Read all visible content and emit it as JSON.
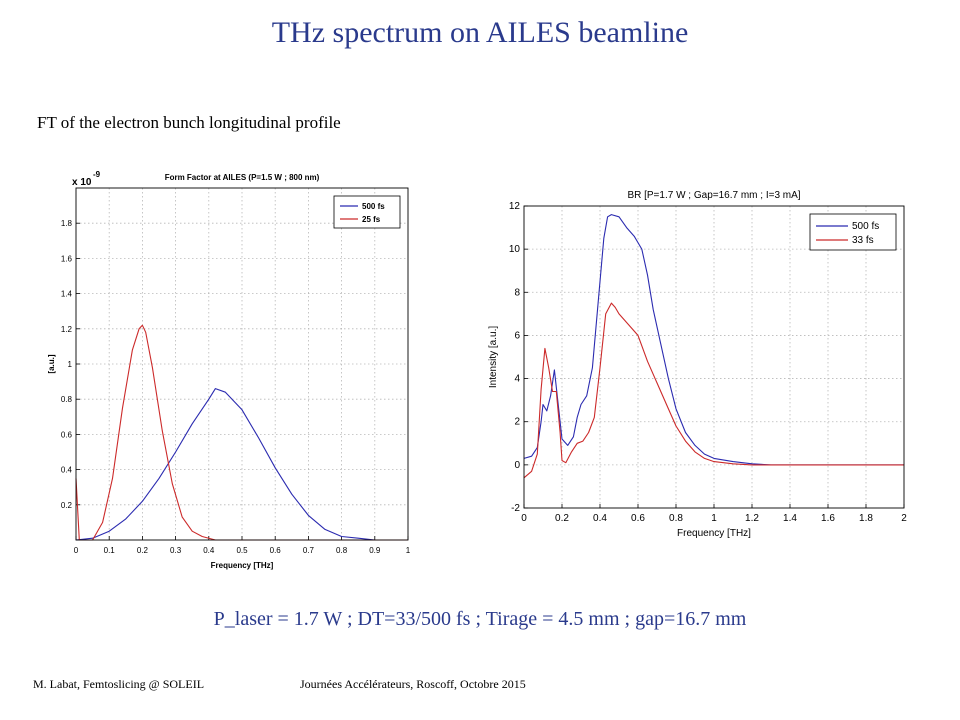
{
  "slide": {
    "title": "THz spectrum on AILES beamline",
    "subtitle": "FT of the electron bunch longitudinal profile",
    "params": "P_laser = 1.7 W ; DT=33/500 fs ; Tirage = 4.5 mm ; gap=16.7 mm",
    "footer_left": "M. Labat, Femtoslicing @ SOLEIL",
    "footer_right": "Journées Accélérateurs, Roscoff, Octobre 2015"
  },
  "chart_data": [
    {
      "type": "line",
      "title": "Form Factor at AILES (P=1.5 W ; 800 nm)",
      "xlabel": "Frequency [THz]",
      "ylabel": "[a.u.]",
      "y_multiplier": "x 10",
      "y_exponent": "-9",
      "xlim": [
        0,
        1
      ],
      "ylim": [
        0,
        2
      ],
      "xticks": [
        0,
        0.1,
        0.2,
        0.3,
        0.4,
        0.5,
        0.6,
        0.7,
        0.8,
        0.9,
        1
      ],
      "xtick_labels": [
        "0",
        "0.1",
        "0.2",
        "0.3",
        "0.4",
        "0.5",
        "0.6",
        "0.7",
        "0.8",
        "0.9",
        "1"
      ],
      "yticks": [
        0.2,
        0.4,
        0.6,
        0.8,
        1,
        1.2,
        1.4,
        1.6,
        1.8
      ],
      "ytick_labels": [
        "0.2",
        "0.4",
        "0.6",
        "0.8",
        "1",
        "1.2",
        "1.4",
        "1.6",
        "1.8"
      ],
      "grid": true,
      "legend_position": "top-right",
      "series": [
        {
          "name": "500 fs",
          "color": "#2b2bb0",
          "x": [
            0,
            0.05,
            0.1,
            0.15,
            0.2,
            0.25,
            0.3,
            0.35,
            0.4,
            0.42,
            0.45,
            0.5,
            0.55,
            0.6,
            0.65,
            0.7,
            0.75,
            0.8,
            0.85,
            0.9,
            1.0
          ],
          "y": [
            0.0,
            0.01,
            0.05,
            0.12,
            0.22,
            0.35,
            0.5,
            0.66,
            0.8,
            0.86,
            0.84,
            0.74,
            0.58,
            0.41,
            0.26,
            0.14,
            0.06,
            0.02,
            0.01,
            0.0,
            0.0
          ]
        },
        {
          "name": "25 fs",
          "color": "#cc2a2a",
          "x": [
            0.0,
            0.01,
            0.02,
            0.05,
            0.08,
            0.11,
            0.14,
            0.17,
            0.19,
            0.2,
            0.21,
            0.23,
            0.26,
            0.29,
            0.32,
            0.35,
            0.38,
            0.42,
            0.5,
            0.6,
            1.0
          ],
          "y": [
            0.35,
            0.0,
            0.0,
            0.0,
            0.1,
            0.35,
            0.75,
            1.08,
            1.2,
            1.22,
            1.18,
            0.98,
            0.62,
            0.32,
            0.13,
            0.05,
            0.02,
            0.0,
            0.0,
            0.0,
            0.0
          ]
        }
      ]
    },
    {
      "type": "line",
      "title": "BR [P=1.7 W ; Gap=16.7 mm ; I=3 mA]",
      "xlabel": "Frequency [THz]",
      "ylabel": "Intensity [a.u.]",
      "xlim": [
        0,
        2
      ],
      "ylim": [
        -2,
        12
      ],
      "xticks": [
        0,
        0.2,
        0.4,
        0.6,
        0.8,
        1,
        1.2,
        1.4,
        1.6,
        1.8,
        2
      ],
      "xtick_labels": [
        "0",
        "0.2",
        "0.4",
        "0.6",
        "0.8",
        "1",
        "1.2",
        "1.4",
        "1.6",
        "1.8",
        "2"
      ],
      "yticks": [
        -2,
        0,
        2,
        4,
        6,
        8,
        10,
        12
      ],
      "ytick_labels": [
        "-2",
        "0",
        "2",
        "4",
        "6",
        "8",
        "10",
        "12"
      ],
      "grid": true,
      "legend_position": "top-right",
      "series": [
        {
          "name": "500 fs",
          "color": "#2b2bb0",
          "x": [
            0,
            0.04,
            0.07,
            0.09,
            0.1,
            0.12,
            0.14,
            0.16,
            0.18,
            0.2,
            0.23,
            0.26,
            0.28,
            0.3,
            0.33,
            0.36,
            0.39,
            0.42,
            0.44,
            0.46,
            0.5,
            0.54,
            0.58,
            0.62,
            0.65,
            0.68,
            0.72,
            0.76,
            0.8,
            0.85,
            0.9,
            0.95,
            1.0,
            1.1,
            1.2,
            1.3,
            2.0
          ],
          "y": [
            0.3,
            0.4,
            0.8,
            2.0,
            2.8,
            2.5,
            3.2,
            4.4,
            2.8,
            1.2,
            0.9,
            1.3,
            2.2,
            2.8,
            3.2,
            4.5,
            7.5,
            10.5,
            11.5,
            11.6,
            11.5,
            11.0,
            10.6,
            10.0,
            8.8,
            7.2,
            5.6,
            4.0,
            2.6,
            1.5,
            0.9,
            0.5,
            0.3,
            0.15,
            0.05,
            0.0,
            0.0
          ]
        },
        {
          "name": "33 fs",
          "color": "#cc2a2a",
          "x": [
            0,
            0.04,
            0.07,
            0.09,
            0.11,
            0.13,
            0.15,
            0.17,
            0.19,
            0.2,
            0.22,
            0.25,
            0.28,
            0.31,
            0.34,
            0.37,
            0.4,
            0.43,
            0.46,
            0.48,
            0.5,
            0.55,
            0.6,
            0.65,
            0.7,
            0.75,
            0.8,
            0.85,
            0.9,
            0.95,
            1.0,
            1.1,
            1.2,
            1.3,
            2.0
          ],
          "y": [
            -0.6,
            -0.3,
            0.5,
            3.5,
            5.4,
            4.5,
            3.4,
            3.4,
            1.5,
            0.2,
            0.1,
            0.6,
            1.0,
            1.1,
            1.5,
            2.2,
            4.5,
            7.0,
            7.5,
            7.3,
            7.0,
            6.5,
            6.0,
            4.8,
            3.8,
            2.8,
            1.8,
            1.1,
            0.6,
            0.3,
            0.15,
            0.05,
            0.0,
            0.0,
            0.0
          ]
        }
      ]
    }
  ]
}
